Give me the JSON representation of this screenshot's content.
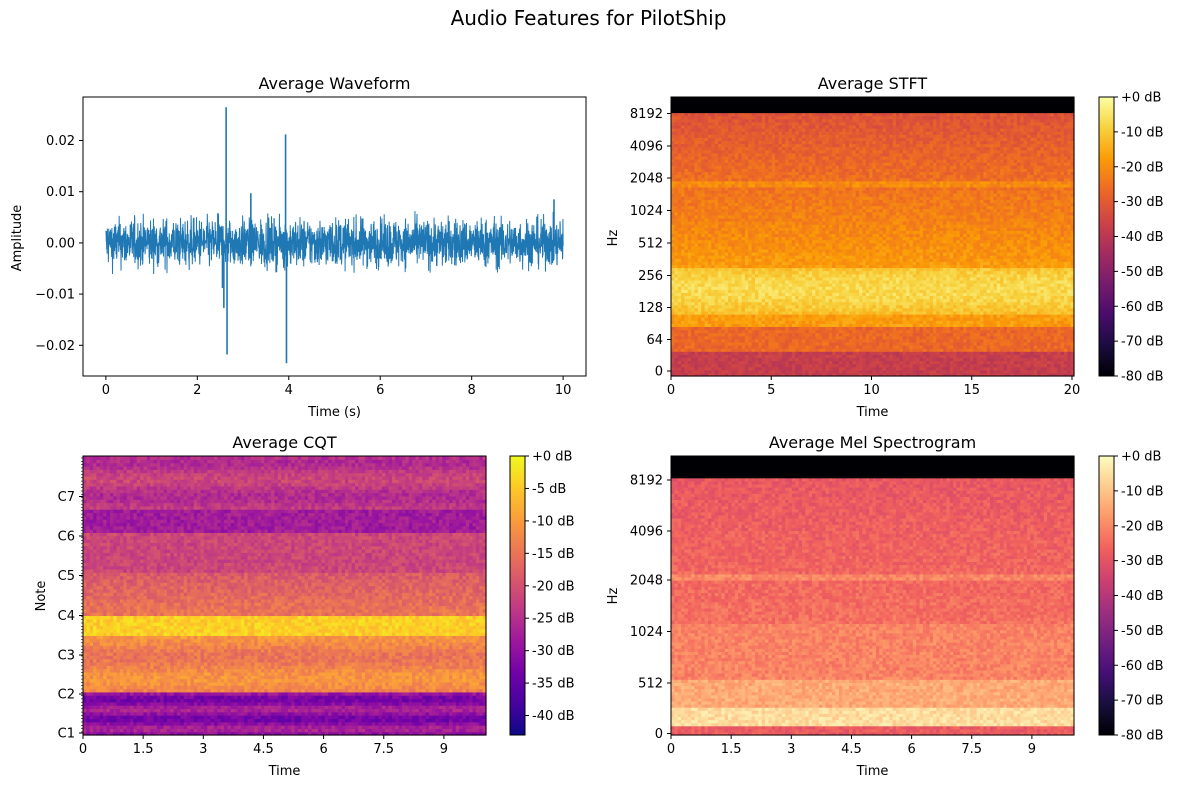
{
  "figure": {
    "title": "Audio Features for PilotShip"
  },
  "colors": {
    "line": "#1f77b4",
    "inferno": [
      "#000004",
      "#1b0c41",
      "#4a0c6b",
      "#781c6d",
      "#a52c60",
      "#cf4446",
      "#ed6925",
      "#fb9b06",
      "#f7d13d",
      "#fcffa4"
    ],
    "plasma": [
      "#0d0887",
      "#46039f",
      "#7201a8",
      "#9c179e",
      "#bd3786",
      "#d8576b",
      "#ed7953",
      "#fb9f3a",
      "#fdca26",
      "#f0f921"
    ],
    "magma": [
      "#000004",
      "#180f3d",
      "#440f76",
      "#721f81",
      "#9e2f7f",
      "#cd4071",
      "#f1605d",
      "#fd9668",
      "#feca8d",
      "#fcfdbf"
    ]
  },
  "chart_data": [
    {
      "id": "waveform",
      "type": "line",
      "title": "Average Waveform",
      "xlabel": "Time (s)",
      "ylabel": "Amplitude",
      "xlim": [
        -0.5,
        10.5
      ],
      "ylim": [
        -0.026,
        0.0285
      ],
      "xticks": [
        0,
        2,
        4,
        6,
        8,
        10
      ],
      "xtick_labels": [
        "0",
        "2",
        "4",
        "6",
        "8",
        "10"
      ],
      "yticks": [
        -0.02,
        -0.01,
        0.0,
        0.01,
        0.02
      ],
      "ytick_labels": [
        "−0.02",
        "−0.01",
        "0.00",
        "0.01",
        "0.02"
      ],
      "duration": 10,
      "noise_amplitude": 0.0055,
      "spikes": [
        {
          "x": 2.45,
          "y": 0.0058
        },
        {
          "x": 2.55,
          "y": -0.0088
        },
        {
          "x": 2.58,
          "y": -0.0127
        },
        {
          "x": 2.63,
          "y": 0.0265
        },
        {
          "x": 2.65,
          "y": -0.0218
        },
        {
          "x": 3.17,
          "y": 0.0097
        },
        {
          "x": 3.93,
          "y": 0.0212
        },
        {
          "x": 3.95,
          "y": -0.0235
        },
        {
          "x": 9.8,
          "y": 0.0085
        }
      ]
    },
    {
      "id": "stft",
      "type": "heatmap",
      "title": "Average STFT",
      "xlabel": "Time",
      "ylabel": "Hz",
      "xlim": [
        0,
        20.1
      ],
      "xticks": [
        0,
        5,
        10,
        15,
        20
      ],
      "xtick_labels": [
        "0",
        "5",
        "10",
        "15",
        "20"
      ],
      "ytick_labels": [
        "0",
        "64",
        "128",
        "256",
        "512",
        "1024",
        "2048",
        "4096",
        "8192"
      ],
      "colormap": "inferno",
      "colorbar": {
        "min": -80,
        "max": 0,
        "labels": [
          "+0 dB",
          "-10 dB",
          "-20 dB",
          "-30 dB",
          "-40 dB",
          "-50 dB",
          "-60 dB",
          "-70 dB",
          "-80 dB"
        ]
      }
    },
    {
      "id": "cqt",
      "type": "heatmap",
      "title": "Average CQT",
      "xlabel": "Time",
      "ylabel": "Note",
      "xlim": [
        0,
        10.05
      ],
      "xticks": [
        0,
        1.5,
        3,
        4.5,
        6,
        7.5,
        9
      ],
      "xtick_labels": [
        "0",
        "1.5",
        "3",
        "4.5",
        "6",
        "7.5",
        "9"
      ],
      "ytick_labels": [
        "C1",
        "C2",
        "C3",
        "C4",
        "C5",
        "C6",
        "C7"
      ],
      "colormap": "plasma",
      "colorbar": {
        "min": -43,
        "max": 0,
        "labels": [
          "+0 dB",
          "-5 dB",
          "-10 dB",
          "-15 dB",
          "-20 dB",
          "-25 dB",
          "-30 dB",
          "-35 dB",
          "-40 dB"
        ]
      }
    },
    {
      "id": "mel",
      "type": "heatmap",
      "title": "Average Mel Spectrogram",
      "xlabel": "Time",
      "ylabel": "Hz",
      "xlim": [
        0,
        10.05
      ],
      "xticks": [
        0,
        1.5,
        3,
        4.5,
        6,
        7.5,
        9
      ],
      "xtick_labels": [
        "0",
        "1.5",
        "3",
        "4.5",
        "6",
        "7.5",
        "9"
      ],
      "ytick_labels": [
        "0",
        "512",
        "1024",
        "2048",
        "4096",
        "8192"
      ],
      "colormap": "magma",
      "colorbar": {
        "min": -80,
        "max": 0,
        "labels": [
          "+0 dB",
          "-10 dB",
          "-20 dB",
          "-30 dB",
          "-40 dB",
          "-50 dB",
          "-60 dB",
          "-70 dB",
          "-80 dB"
        ]
      }
    }
  ]
}
